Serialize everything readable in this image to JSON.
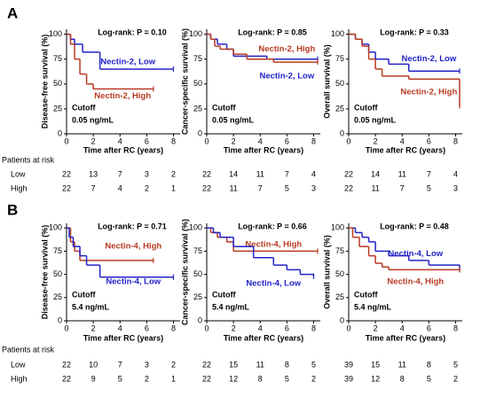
{
  "panel_labels": [
    "A",
    "B"
  ],
  "risk_title": "Patients at risk",
  "risk_rows": [
    "Low",
    "High"
  ],
  "chart_data": [
    {
      "type": "step",
      "ylabel": "Disease-free survival (%)",
      "xlabel": "Time after RC (years)",
      "annotation": "Log-rank: P = 0.10",
      "cutoff_label": "Cutoff",
      "cutoff_value": "0.05 ng/mL",
      "xlim": [
        0,
        8.5
      ],
      "ylim": [
        0,
        105
      ],
      "xticks": [
        0,
        2,
        4,
        6,
        8
      ],
      "yticks": [
        0,
        25,
        50,
        75,
        100
      ],
      "series": [
        {
          "name": "Nectin-2, Low",
          "color": "#2222c8",
          "x": [
            0,
            0.3,
            0.6,
            1.2,
            2.5,
            8
          ],
          "values": [
            100,
            95,
            90,
            82,
            65,
            65
          ]
        },
        {
          "name": "Nectin-2, High",
          "color": "#b83a22",
          "x": [
            0,
            0.3,
            0.6,
            1,
            1.5,
            2,
            6.5
          ],
          "values": [
            100,
            90,
            75,
            60,
            50,
            45,
            45
          ]
        }
      ],
      "at_risk": [
        [
          22,
          13,
          7,
          3,
          2
        ],
        [
          22,
          7,
          4,
          2,
          1
        ]
      ]
    },
    {
      "type": "step",
      "ylabel": "Cancer-specific survival (%)",
      "xlabel": "Time after RC (years)",
      "annotation": "Log-rank: P = 0.85",
      "cutoff_label": "Cutoff",
      "cutoff_value": "0.05 ng/mL",
      "xlim": [
        0,
        8.5
      ],
      "ylim": [
        0,
        105
      ],
      "xticks": [
        0,
        2,
        4,
        6,
        8
      ],
      "yticks": [
        0,
        25,
        50,
        75,
        100
      ],
      "series": [
        {
          "name": "Nectin-2, Low",
          "color": "#2222c8",
          "x": [
            0,
            0.3,
            0.8,
            1.5,
            2,
            4.5,
            8.3
          ],
          "values": [
            100,
            95,
            90,
            85,
            78,
            75,
            75
          ]
        },
        {
          "name": "Nectin-2, High",
          "color": "#b83a22",
          "x": [
            0,
            0.3,
            0.6,
            1,
            2,
            3,
            5,
            8.3
          ],
          "values": [
            100,
            95,
            88,
            85,
            80,
            75,
            72,
            72
          ]
        }
      ],
      "at_risk": [
        [
          22,
          14,
          11,
          7,
          4
        ],
        [
          22,
          11,
          7,
          5,
          3
        ]
      ]
    },
    {
      "type": "step",
      "ylabel": "Overall survival (%)",
      "xlabel": "Time after RC (years)",
      "annotation": "Log-rank: P = 0.33",
      "cutoff_label": "Cutoff",
      "cutoff_value": "0.05 ng/mL",
      "xlim": [
        0,
        8.5
      ],
      "ylim": [
        0,
        105
      ],
      "xticks": [
        0,
        2,
        4,
        6,
        8
      ],
      "yticks": [
        0,
        25,
        50,
        75,
        100
      ],
      "series": [
        {
          "name": "Nectin-2, Low",
          "color": "#2222c8",
          "x": [
            0,
            0.5,
            1,
            1.5,
            2,
            3,
            4.5,
            8.3
          ],
          "values": [
            100,
            95,
            90,
            82,
            75,
            70,
            63,
            63
          ]
        },
        {
          "name": "Nectin-2, High",
          "color": "#b83a22",
          "x": [
            0,
            0.5,
            1,
            1.5,
            2,
            2.5,
            4.5,
            8,
            8.3
          ],
          "values": [
            100,
            95,
            88,
            75,
            65,
            58,
            55,
            55,
            28
          ]
        }
      ],
      "at_risk": [
        [
          22,
          14,
          11,
          7,
          4
        ],
        [
          22,
          11,
          7,
          5,
          3
        ]
      ]
    },
    {
      "type": "step",
      "ylabel": "Disease-free survival (%)",
      "xlabel": "Time after RC (years)",
      "annotation": "Log-rank: P = 0.71",
      "cutoff_label": "Cutoff",
      "cutoff_value": "5.4 ng/mL",
      "xlim": [
        0,
        8.5
      ],
      "ylim": [
        0,
        105
      ],
      "xticks": [
        0,
        2,
        4,
        6,
        8
      ],
      "yticks": [
        0,
        25,
        50,
        75,
        100
      ],
      "series": [
        {
          "name": "Nectin-4, High",
          "color": "#b83a22",
          "x": [
            0,
            0.3,
            0.6,
            1,
            6.5
          ],
          "values": [
            100,
            85,
            75,
            65,
            65
          ]
        },
        {
          "name": "Nectin-4, Low",
          "color": "#2222c8",
          "x": [
            0,
            0.2,
            0.5,
            1,
            1.5,
            2.5,
            8
          ],
          "values": [
            100,
            90,
            80,
            70,
            60,
            47,
            47
          ]
        }
      ],
      "at_risk": [
        [
          22,
          10,
          7,
          3,
          2
        ],
        [
          22,
          9,
          5,
          2,
          1
        ]
      ]
    },
    {
      "type": "step",
      "ylabel": "Cancer-specific survival (%)",
      "xlabel": "Time after RC (years)",
      "annotation": "Log-rank: P = 0.66",
      "cutoff_label": "Cutoff",
      "cutoff_value": "5.4 ng/mL",
      "xlim": [
        0,
        8.5
      ],
      "ylim": [
        0,
        105
      ],
      "xticks": [
        0,
        2,
        4,
        6,
        8
      ],
      "yticks": [
        0,
        25,
        50,
        75,
        100
      ],
      "series": [
        {
          "name": "Nectin-4, High",
          "color": "#b83a22",
          "x": [
            0,
            0.3,
            0.8,
            1.5,
            2,
            8.3
          ],
          "values": [
            100,
            95,
            90,
            85,
            75,
            75
          ]
        },
        {
          "name": "Nectin-4, Low",
          "color": "#2222c8",
          "x": [
            0,
            0.5,
            1,
            2,
            3.5,
            5,
            6,
            7,
            8
          ],
          "values": [
            100,
            95,
            90,
            80,
            68,
            60,
            55,
            50,
            48
          ]
        }
      ],
      "at_risk": [
        [
          22,
          15,
          11,
          8,
          5
        ],
        [
          22,
          12,
          8,
          5,
          2
        ]
      ]
    },
    {
      "type": "step",
      "ylabel": "Overall survival (%)",
      "xlabel": "Time after RC (years)",
      "annotation": "Log-rank: P = 0.48",
      "cutoff_label": "Cutoff",
      "cutoff_value": "5.4 ng/mL",
      "xlim": [
        0,
        8.5
      ],
      "ylim": [
        0,
        105
      ],
      "xticks": [
        0,
        2,
        4,
        6,
        8
      ],
      "yticks": [
        0,
        25,
        50,
        75,
        100
      ],
      "series": [
        {
          "name": "Nectin-4, Low",
          "color": "#2222c8",
          "x": [
            0,
            0.5,
            1,
            1.5,
            2,
            3,
            4.5,
            6,
            8.3
          ],
          "values": [
            100,
            95,
            90,
            85,
            75,
            70,
            65,
            60,
            55
          ]
        },
        {
          "name": "Nectin-4, High",
          "color": "#b83a22",
          "x": [
            0,
            0.3,
            0.8,
            1.5,
            2,
            2.5,
            3,
            8.3
          ],
          "values": [
            100,
            90,
            80,
            70,
            62,
            58,
            55,
            55
          ]
        }
      ],
      "at_risk": [
        [
          39,
          15,
          11,
          8,
          5
        ],
        [
          39,
          12,
          8,
          5,
          2
        ]
      ]
    }
  ]
}
